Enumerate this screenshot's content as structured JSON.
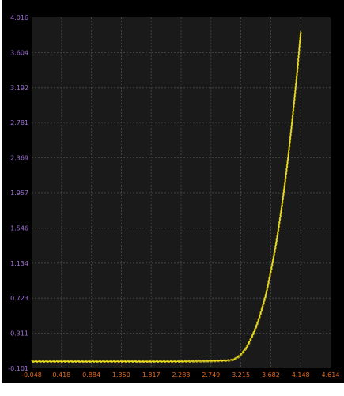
{
  "chart_data": {
    "type": "line",
    "title": "",
    "xlabel": "",
    "ylabel": "",
    "xlim": [
      -0.048,
      4.614
    ],
    "ylim": [
      -0.101,
      4.016
    ],
    "x_ticks": [
      "-0.048",
      "0.418",
      "0.884",
      "1.350",
      "1.817",
      "2.283",
      "2.749",
      "3.215",
      "3.682",
      "4.148",
      "4.614"
    ],
    "y_ticks": [
      "-0.101",
      "0.311",
      "0.723",
      "1.134",
      "1.546",
      "1.957",
      "2.369",
      "2.781",
      "3.192",
      "3.604",
      "4.016"
    ],
    "grid": true,
    "series": [
      {
        "color": "#f0e020",
        "x": [
          -0.048,
          0.3,
          0.8,
          1.3,
          1.8,
          2.3,
          2.8,
          3.0,
          3.1,
          3.15,
          3.2,
          3.25,
          3.3,
          3.35,
          3.4,
          3.45,
          3.5,
          3.55,
          3.6,
          3.65,
          3.7,
          3.75,
          3.8,
          3.85,
          3.9,
          3.95,
          4.0,
          4.05,
          4.1,
          4.15
        ],
        "y": [
          -0.02,
          -0.02,
          -0.02,
          -0.02,
          -0.02,
          -0.02,
          -0.015,
          -0.01,
          0.0,
          0.02,
          0.05,
          0.09,
          0.14,
          0.21,
          0.29,
          0.38,
          0.49,
          0.61,
          0.75,
          0.92,
          1.1,
          1.3,
          1.53,
          1.78,
          2.06,
          2.36,
          2.7,
          3.05,
          3.43,
          3.85
        ]
      }
    ]
  },
  "colors": {
    "background": "#000000",
    "plot_area": "#1a1a1a",
    "grid": "#4a4a4a",
    "x_tick_labels": "#e46a1c",
    "y_tick_labels": "#a070d8",
    "line": "#f0e020"
  }
}
